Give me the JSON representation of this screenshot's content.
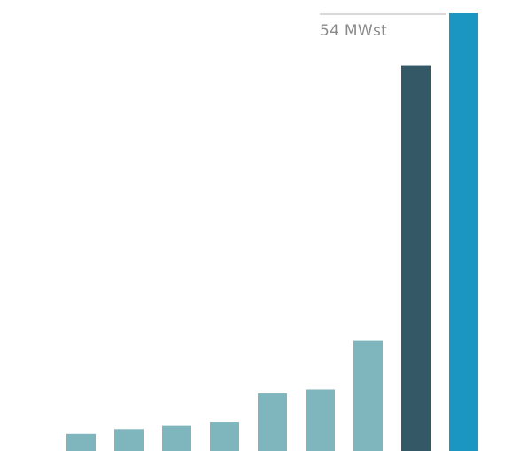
{
  "chart_data": {
    "type": "bar",
    "values": [
      2.1,
      2.7,
      3.1,
      3.6,
      7.1,
      7.6,
      13.6,
      47.6,
      54
    ],
    "ylim": [
      0,
      54
    ],
    "grid": false,
    "annotation": {
      "text": "54 MWst",
      "value": 54,
      "target_index": 8
    },
    "colors": {
      "base": "#7fb5bc",
      "penultimate": "#355866",
      "last": "#1b96c2",
      "annotation_line": "#cccccc",
      "annotation_text": "#8a8a8a"
    }
  }
}
